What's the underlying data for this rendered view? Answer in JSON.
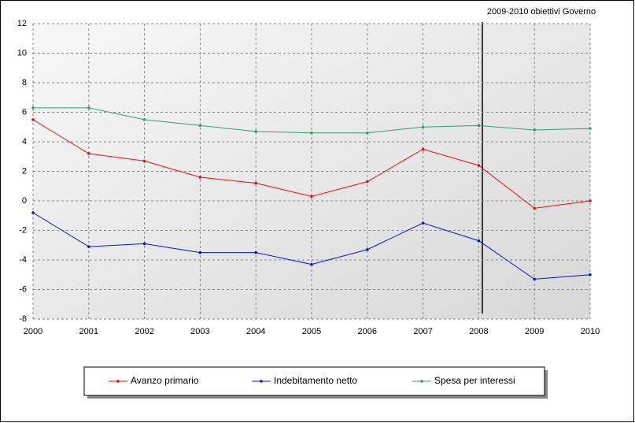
{
  "chart_data": {
    "type": "line",
    "annotation": "2009-2010 obiettivi Governo",
    "x": [
      2000,
      2001,
      2002,
      2003,
      2004,
      2005,
      2006,
      2007,
      2008,
      2009,
      2010
    ],
    "xlim": [
      2000,
      2010
    ],
    "xticks": [
      2000,
      2001,
      2002,
      2003,
      2004,
      2005,
      2006,
      2007,
      2008,
      2009,
      2010
    ],
    "ylim": [
      -8,
      12
    ],
    "yticks": [
      -8,
      -6,
      -4,
      -2,
      0,
      2,
      4,
      6,
      8,
      10,
      12
    ],
    "grid": true,
    "legend": "bottom",
    "series": [
      {
        "name": "Avanzo primario",
        "color": "#e01010",
        "values": [
          5.5,
          3.2,
          2.7,
          1.6,
          1.2,
          0.3,
          1.3,
          3.5,
          2.4,
          -0.5,
          0.0
        ]
      },
      {
        "name": "Indebitamento netto",
        "color": "#1010d0",
        "values": [
          -0.8,
          -3.1,
          -2.9,
          -3.5,
          -3.5,
          -4.3,
          -3.3,
          -1.5,
          -2.7,
          -5.3,
          -5.0
        ]
      },
      {
        "name": "Spesa per interessi",
        "color": "#30a070",
        "values": [
          6.3,
          6.3,
          5.5,
          5.1,
          4.7,
          4.6,
          4.6,
          5.0,
          5.1,
          4.8,
          4.9
        ]
      }
    ]
  }
}
